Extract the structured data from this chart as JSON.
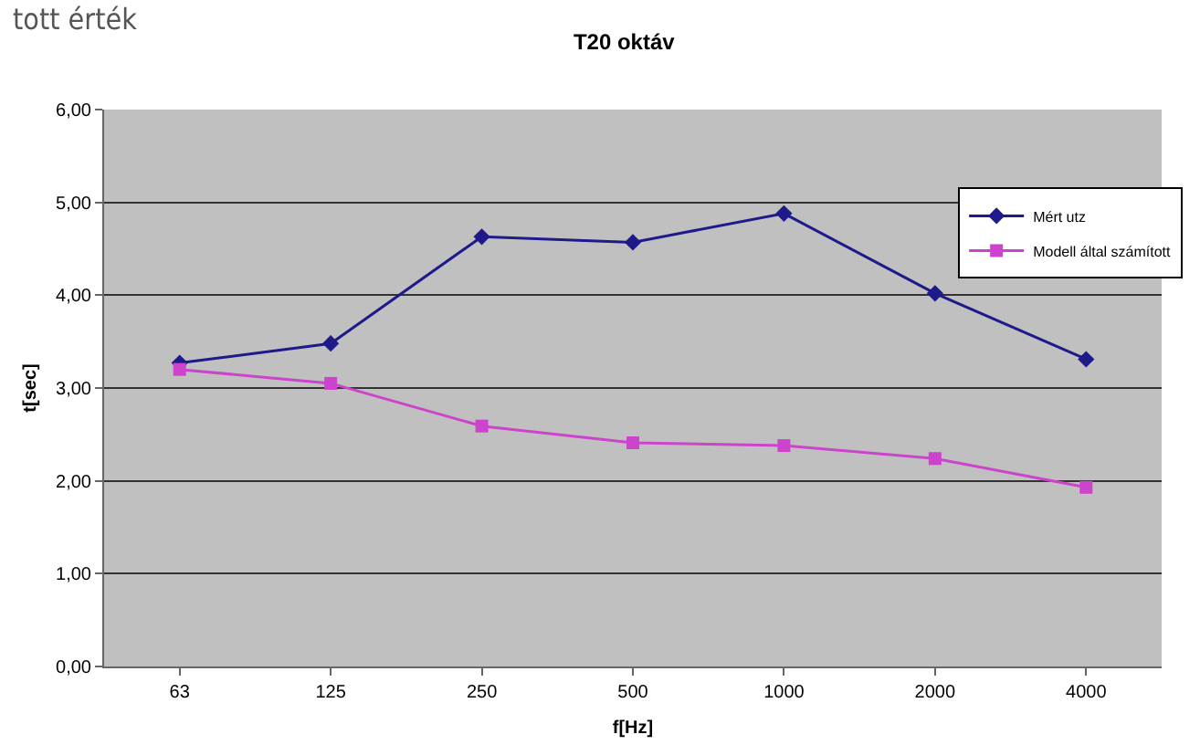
{
  "chart_data": {
    "type": "line",
    "title": "T20 oktáv",
    "xlabel": "f[Hz]",
    "ylabel": "t[sec]",
    "annotations": [
      "tott érték"
    ],
    "categories": [
      "63",
      "125",
      "250",
      "500",
      "1000",
      "2000",
      "4000"
    ],
    "series": [
      {
        "name": "Mért utz",
        "color": "#1f1a8a",
        "marker": "diamond",
        "values": [
          3.27,
          3.48,
          4.63,
          4.57,
          4.88,
          4.02,
          3.31
        ]
      },
      {
        "name": "Modell által számított",
        "color": "#cc44cc",
        "marker": "square",
        "values": [
          3.2,
          3.05,
          2.59,
          2.41,
          2.38,
          2.24,
          1.93
        ]
      }
    ],
    "ylim": [
      0,
      6
    ],
    "yticks": [
      {
        "value": 0,
        "label": "0,00"
      },
      {
        "value": 1,
        "label": "1,00"
      },
      {
        "value": 2,
        "label": "2,00"
      },
      {
        "value": 3,
        "label": "3,00"
      },
      {
        "value": 4,
        "label": "4,00"
      },
      {
        "value": 5,
        "label": "5,00"
      },
      {
        "value": 6,
        "label": "6,00"
      }
    ],
    "grid": "y",
    "legend": "top right",
    "line_style": "solid"
  }
}
